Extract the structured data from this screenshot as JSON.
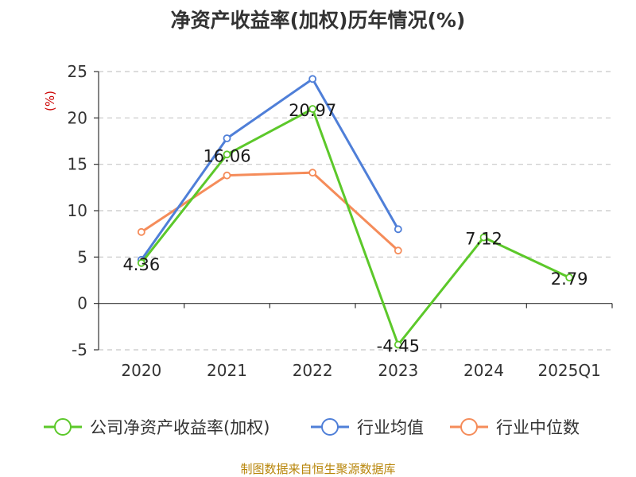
{
  "chart_data": {
    "type": "line",
    "title": "净资产收益率(加权)历年情况(%)",
    "ylabel": "(%)",
    "xlabel": "",
    "categories": [
      "2020",
      "2021",
      "2022",
      "2023",
      "2024",
      "2025Q1"
    ],
    "ylim": [
      -5,
      25
    ],
    "yticks": [
      "-5",
      "0",
      "5",
      "10",
      "15",
      "20",
      "25"
    ],
    "grid": true,
    "legend_position": "bottom",
    "series": [
      {
        "name": "公司净资产收益率(加权)",
        "color": "#5cc82a",
        "values": [
          4.36,
          16.06,
          20.97,
          -4.45,
          7.12,
          2.79
        ],
        "labels": [
          "4.36",
          "16.06",
          "20.97",
          "-4.45",
          "7.12",
          "2.79"
        ]
      },
      {
        "name": "行业均值",
        "color": "#4f7fd8",
        "values": [
          4.7,
          17.8,
          24.2,
          8.0,
          null,
          null
        ]
      },
      {
        "name": "行业中位数",
        "color": "#f58c5a",
        "values": [
          7.7,
          13.8,
          14.1,
          5.7,
          null,
          null
        ]
      }
    ]
  },
  "source": "制图数据来自恒生聚源数据库"
}
